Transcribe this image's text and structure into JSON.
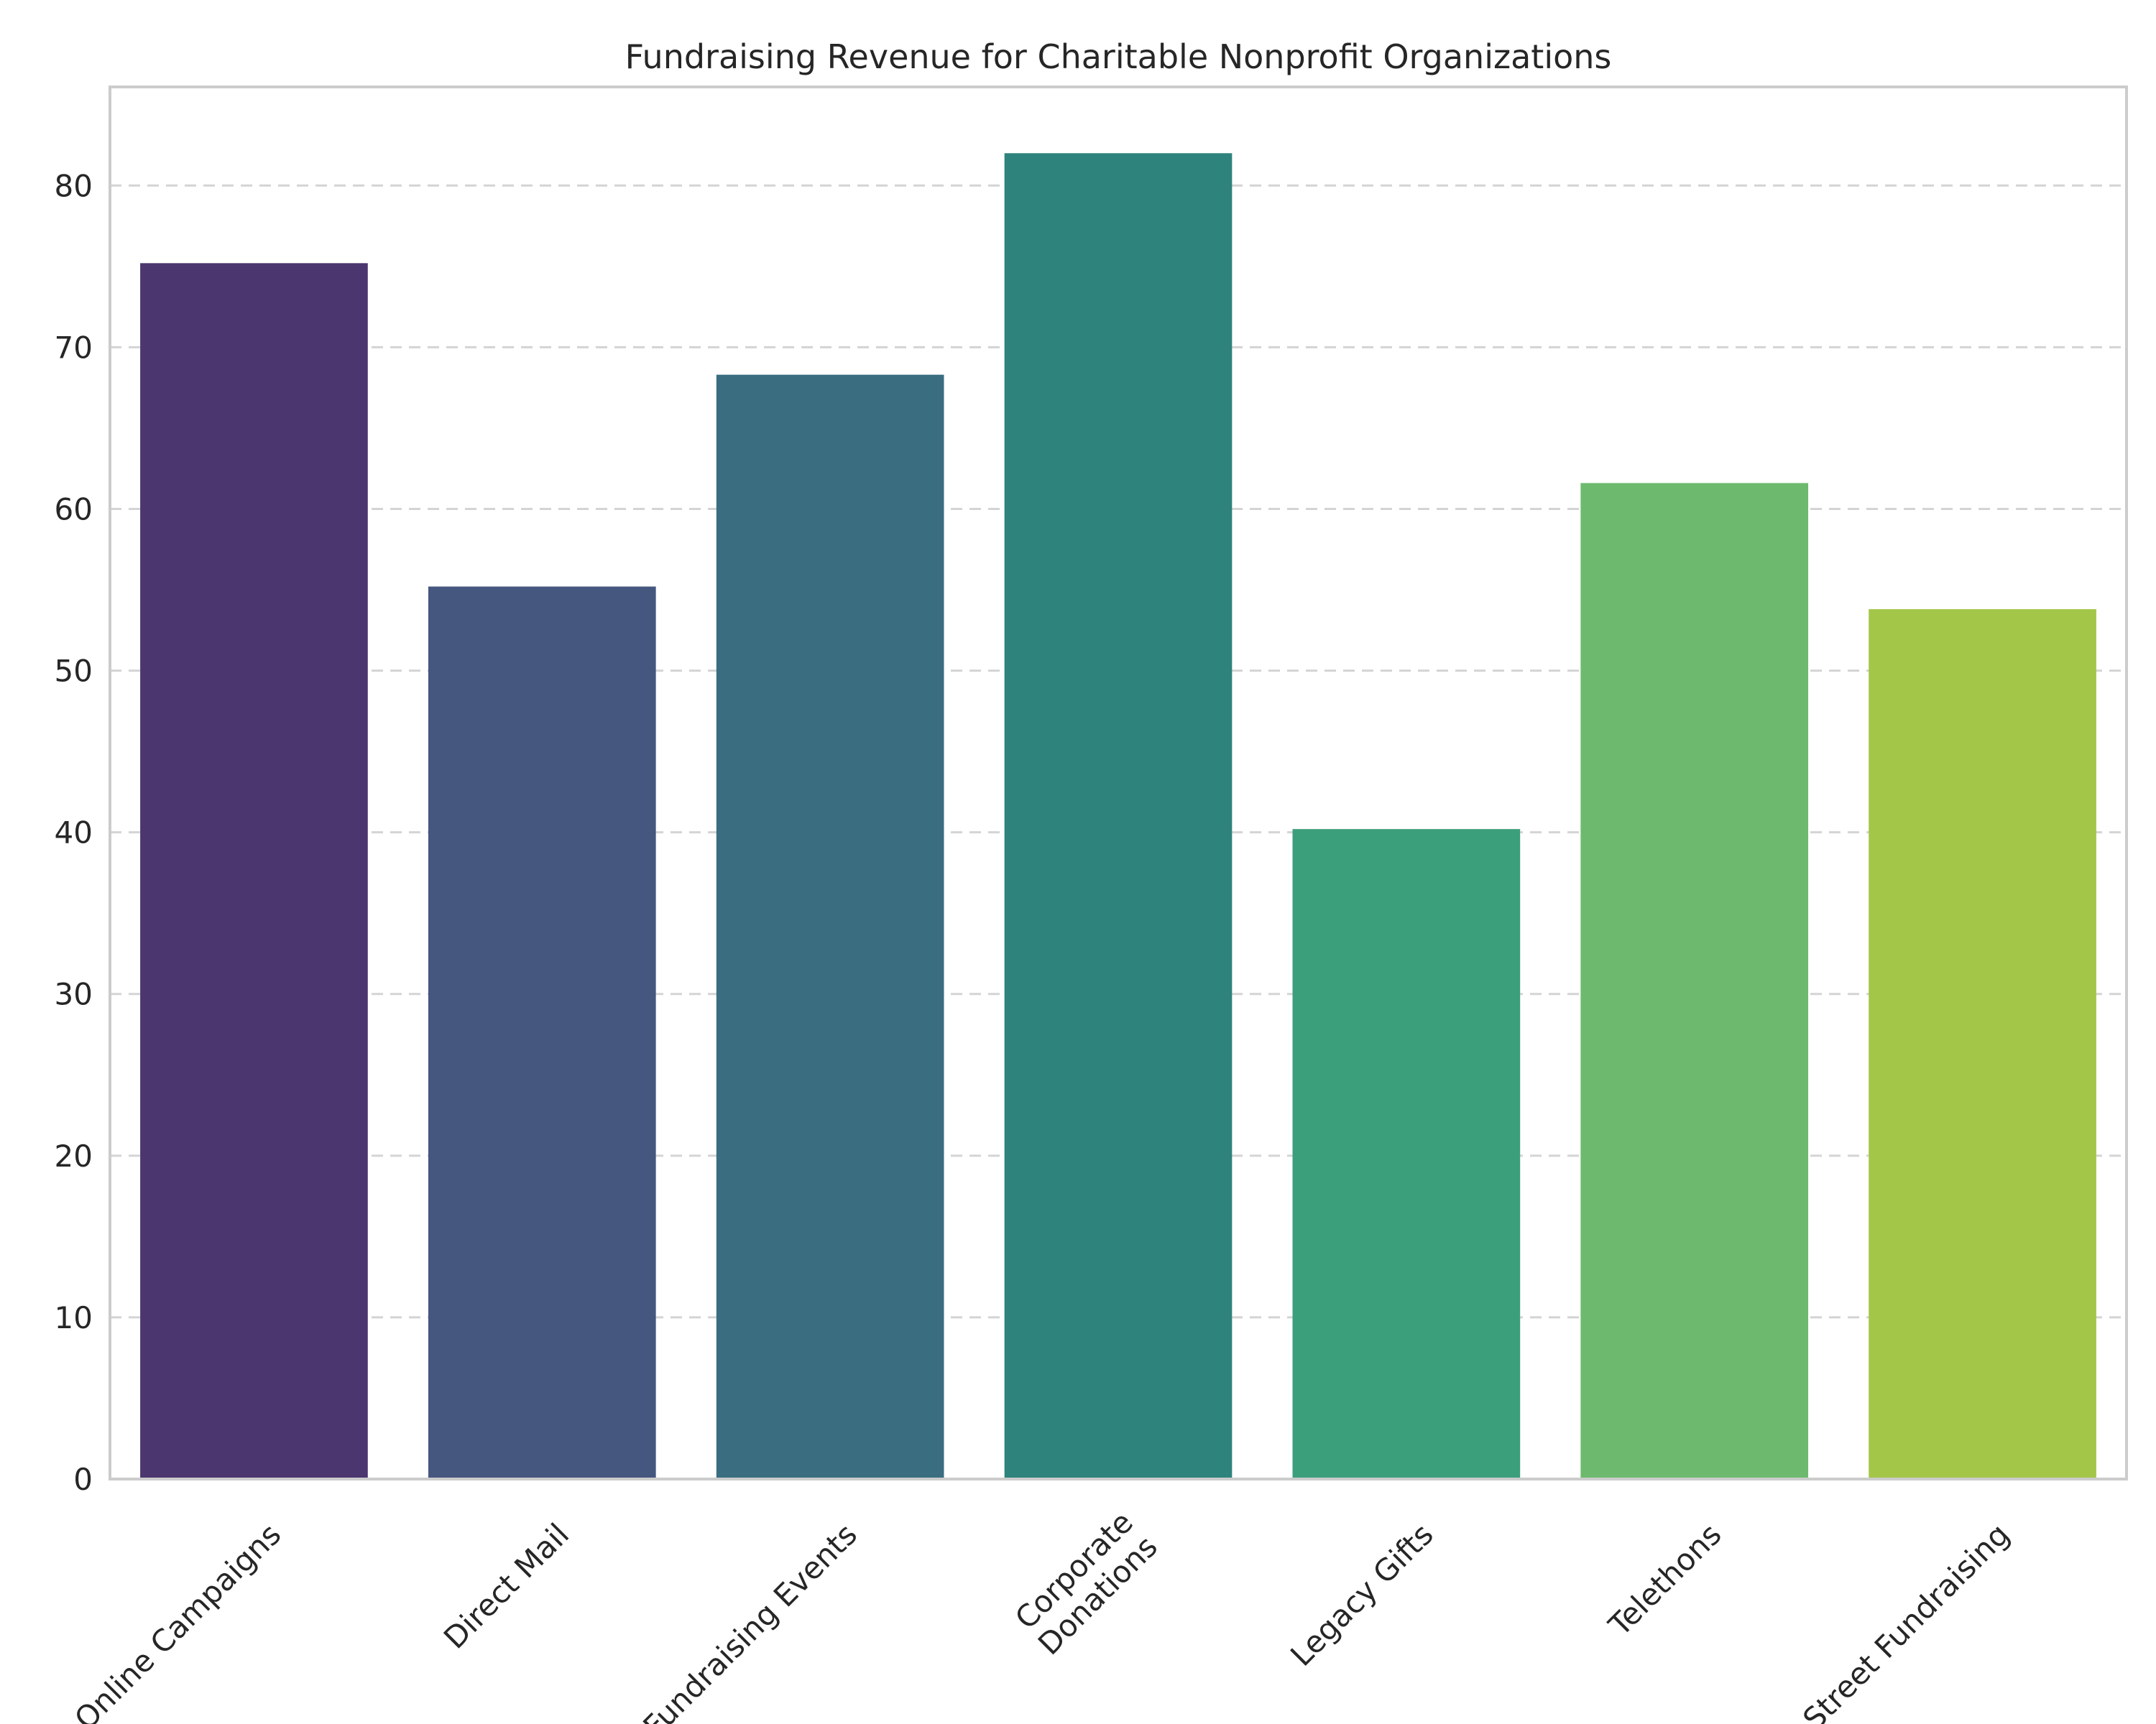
{
  "chart_data": {
    "type": "bar",
    "title": "Fundraising Revenue for Charitable Nonprofit Organizations",
    "xlabel": "",
    "ylabel": "",
    "categories": [
      "Online Campaigns",
      "Direct Mail",
      "Fundraising Events",
      "Corporate\nDonations",
      "Legacy Gifts",
      "Telethons",
      "Street Fundraising"
    ],
    "values": [
      75.2,
      55.2,
      68.3,
      82.0,
      40.2,
      61.6,
      53.8
    ],
    "colors": [
      "#4b366f",
      "#45577f",
      "#3a6d80",
      "#2e837c",
      "#3c9f7c",
      "#6dba6e",
      "#a3c649"
    ],
    "yticks": [
      0,
      10,
      20,
      30,
      40,
      50,
      60,
      70,
      80
    ],
    "ylim": [
      0,
      86.1
    ],
    "grid": "y-dashed",
    "legend": "none"
  }
}
